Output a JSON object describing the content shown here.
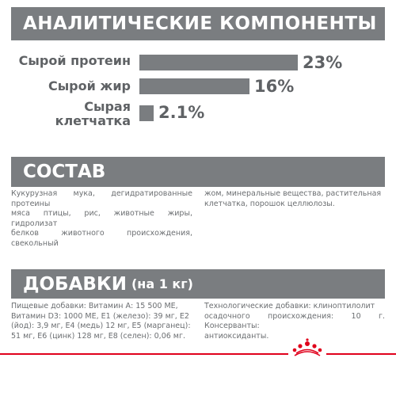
{
  "analytic": {
    "title": "АНАЛИТИЧЕСКИЕ КОМПОНЕНТЫ",
    "rows": [
      {
        "label_lines": [
          "Сырой протеин"
        ],
        "value_text": "23%",
        "value": 23
      },
      {
        "label_lines": [
          "Сырой жир"
        ],
        "value_text": "16%",
        "value": 16
      },
      {
        "label_lines": [
          "Сырая",
          "клетчатка"
        ],
        "value_text": "2.1%",
        "value": 2.1
      }
    ]
  },
  "composition": {
    "title": "СОСТАВ",
    "col1_lines": [
      "Кукурузная мука, дегидратированные протеины",
      "мяса птицы, рис, животные жиры, гидролизат",
      "белков животного происхождения, свекольный"
    ],
    "col2_lines": [
      "жом, минеральные вещества, растительная",
      "клетчатка, порошок целлюлозы."
    ]
  },
  "additives": {
    "title": "ДОБАВКИ",
    "subtitle": "(на 1 кг)",
    "col1_lines": [
      "Пищевые добавки: Витамин А: 15 500 МЕ,",
      "Витамин D3: 1000 МЕ, Е1 (железо): 39 мг, Е2",
      "(йод): 3,9 мг, Е4 (медь) 12 мг, Е5 (марганец):",
      "51 мг, Е6 (цинк) 128 мг, Е8 (селен): 0,06 мг."
    ],
    "col2_lines": [
      "Технологические добавки: клиноптилолит",
      "осадочного происхождения: 10 г. Консерванты:",
      "антиоксиданты."
    ]
  },
  "colors": {
    "banner": "#7a7d80",
    "text": "#5f6265",
    "brand_red": "#e0001b"
  },
  "footer": {
    "logo_icon": "crown-icon"
  }
}
